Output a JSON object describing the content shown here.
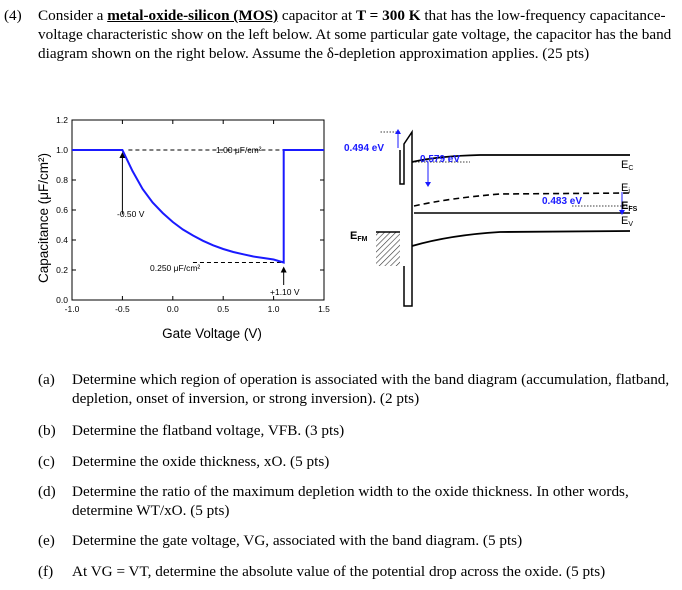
{
  "problem": {
    "number": "(4)",
    "text_1": "Consider a ",
    "term": "metal-oxide-silicon (MOS)",
    "text_2": " capacitor at ",
    "temp": "T = 300 K",
    "text_3": " that has the low-frequency capacitance-voltage characteristic show on the left below. At some particular gate voltage, the capacitor has the band diagram shown on the right below. Assume the δ-depletion approximation applies. (25 pts)"
  },
  "chart_data": {
    "type": "line",
    "xlabel": "Gate Voltage (V)",
    "ylabel": "Capacitance (μF/cm²)",
    "xlim": [
      -1.0,
      1.5
    ],
    "ylim": [
      0.0,
      1.2
    ],
    "x_ticks": [
      "-1.0",
      "-0.5",
      "0.0",
      "0.5",
      "1.0",
      "1.5"
    ],
    "y_ticks": [
      "0.0",
      "0.2",
      "0.4",
      "0.6",
      "0.8",
      "1.0",
      "1.2"
    ],
    "x_tick_values": [
      -1.0,
      -0.5,
      0.0,
      0.5,
      1.0,
      1.5
    ],
    "y_tick_values": [
      0.0,
      0.2,
      0.4,
      0.6,
      0.8,
      1.0,
      1.2
    ],
    "series": [
      {
        "x": [
          -1.0,
          -0.5,
          -0.4,
          -0.3,
          -0.2,
          -0.1,
          0.0,
          0.1,
          0.2,
          0.3,
          0.4,
          0.5,
          0.6,
          0.7,
          0.8,
          0.9,
          1.0,
          1.1,
          1.1,
          1.5
        ],
        "y": [
          1.0,
          1.0,
          0.86,
          0.74,
          0.65,
          0.58,
          0.52,
          0.47,
          0.43,
          0.395,
          0.365,
          0.34,
          0.32,
          0.305,
          0.29,
          0.28,
          0.27,
          0.25,
          1.0,
          1.0
        ]
      }
    ],
    "annotations": {
      "cox": "1.00 μF/cm²",
      "cmin": "0.250 μF/cm²",
      "vfb": "-0.50 V",
      "vt": "+1.10 V"
    },
    "annotation_values": {
      "cox": 1.0,
      "cmin": 0.25,
      "vfb": -0.5,
      "vt": 1.1
    }
  },
  "band": {
    "e1": "0.494 eV",
    "e2": "0.579 eV",
    "e3": "0.483 eV",
    "efm": "E",
    "efm_sub": "FM",
    "ec": "E",
    "ec_sub": "C",
    "ei": "E",
    "ei_sub": "i",
    "efs": "E",
    "efs_sub": "FS",
    "ev": "E",
    "ev_sub": "V"
  },
  "parts": [
    {
      "label": "(a)",
      "text": "Determine which region of operation is associated with the band diagram (accumulation, flatband, depletion, onset of inversion, or strong inversion). (2 pts)"
    },
    {
      "label": "(b)",
      "text": "Determine the flatband voltage, VFB. (3 pts)"
    },
    {
      "label": "(c)",
      "text": "Determine the oxide thickness, xO. (5 pts)"
    },
    {
      "label": "(d)",
      "text": "Determine the ratio of the maximum depletion width to the oxide thickness. In other words, determine WT/xO. (5 pts)"
    },
    {
      "label": "(e)",
      "text": "Determine the gate voltage, VG, associated with the band diagram. (5 pts)"
    },
    {
      "label": "(f)",
      "text": "At VG = VT, determine the absolute value of the potential drop across the oxide. (5 pts)"
    }
  ]
}
